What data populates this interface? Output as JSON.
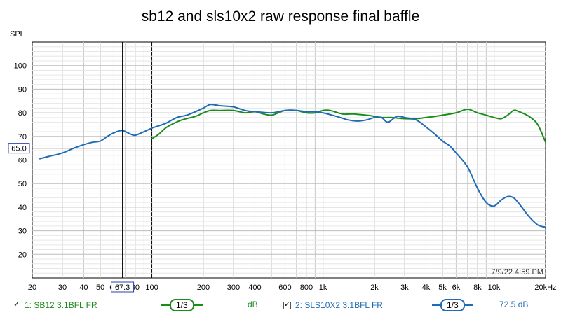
{
  "chart_data": {
    "type": "line",
    "title": "sb12 and sls10x2 raw response final baffle",
    "ylabel": "SPL",
    "xlabel": "",
    "x_scale": "log",
    "xlim": [
      20,
      20000
    ],
    "ylim": [
      10,
      110
    ],
    "x_ticks": [
      {
        "v": 20,
        "label": "20"
      },
      {
        "v": 30,
        "label": "30"
      },
      {
        "v": 40,
        "label": "40"
      },
      {
        "v": 50,
        "label": "50"
      },
      {
        "v": 60,
        "label": "60"
      },
      {
        "v": 80,
        "label": "80"
      },
      {
        "v": 100,
        "label": "100"
      },
      {
        "v": 200,
        "label": "200"
      },
      {
        "v": 300,
        "label": "300"
      },
      {
        "v": 400,
        "label": "400"
      },
      {
        "v": 600,
        "label": "600"
      },
      {
        "v": 800,
        "label": "800"
      },
      {
        "v": 1000,
        "label": "1k"
      },
      {
        "v": 2000,
        "label": "2k"
      },
      {
        "v": 3000,
        "label": "3k"
      },
      {
        "v": 4000,
        "label": "4k"
      },
      {
        "v": 5000,
        "label": "5k"
      },
      {
        "v": 6000,
        "label": "6k"
      },
      {
        "v": 8000,
        "label": "8k"
      },
      {
        "v": 10000,
        "label": "10k"
      },
      {
        "v": 20000,
        "label": "20kHz"
      }
    ],
    "y_ticks": [
      20,
      30,
      40,
      50,
      60,
      70,
      80,
      90,
      100
    ],
    "grid": true,
    "cursor": {
      "x": 67.3,
      "x_label": "67.3",
      "y": 65.0,
      "y_label": "65.0"
    },
    "timestamp": "7/9/22 4:59 PM",
    "series": [
      {
        "name": "1: SB12 3.1BFL FR",
        "color": "#1a8c1a",
        "x": [
          100,
          110,
          120,
          130,
          150,
          180,
          200,
          220,
          250,
          300,
          350,
          400,
          450,
          500,
          550,
          600,
          700,
          800,
          900,
          1000,
          1100,
          1300,
          1500,
          1800,
          2000,
          2200,
          2500,
          3000,
          3500,
          4000,
          4500,
          5000,
          6000,
          7000,
          8000,
          9000,
          10000,
          11000,
          12000,
          13000,
          14000,
          16000,
          18000,
          20000
        ],
        "y": [
          69,
          71,
          73.5,
          75,
          77,
          78.5,
          80,
          81,
          81,
          81,
          80,
          80.5,
          79.5,
          79,
          80,
          81,
          81,
          80,
          80,
          81,
          81,
          79.5,
          79.5,
          79,
          78.5,
          78,
          78,
          77.5,
          77.5,
          78,
          78.5,
          79,
          80,
          81.5,
          80,
          79,
          78,
          77.5,
          79,
          81,
          80.5,
          78.5,
          75,
          67.5
        ]
      },
      {
        "name": "2: SLS10X2 3.1BFL FR",
        "color": "#1f6bb5",
        "x": [
          22,
          25,
          30,
          35,
          40,
          45,
          50,
          55,
          60,
          67,
          75,
          80,
          90,
          100,
          120,
          140,
          160,
          180,
          200,
          220,
          250,
          300,
          350,
          400,
          500,
          600,
          700,
          800,
          900,
          1000,
          1200,
          1400,
          1600,
          1800,
          2000,
          2200,
          2400,
          2700,
          3000,
          3500,
          4000,
          4500,
          5000,
          5500,
          6000,
          7000,
          8000,
          9000,
          10000,
          11000,
          12000,
          13000,
          14000,
          16000,
          18000,
          20000
        ],
        "y": [
          60.5,
          61.5,
          63,
          65,
          66.5,
          67.5,
          68,
          70,
          71.5,
          72.5,
          71,
          70.5,
          72,
          73.5,
          75.5,
          78,
          79,
          80.5,
          82,
          83.5,
          83,
          82.5,
          81,
          80.5,
          80,
          81,
          81,
          80.5,
          80.5,
          80,
          78.5,
          77,
          76.5,
          77,
          78,
          78,
          76,
          78.5,
          78,
          77,
          74,
          71,
          68,
          66,
          63,
          57,
          48,
          42,
          40.5,
          43,
          44.5,
          44,
          41.5,
          36,
          32.5,
          31.5
        ]
      }
    ]
  },
  "legend": {
    "s1": {
      "label": "1: SB12 3.1BFL FR",
      "check": "✓",
      "smoothing": "1/3",
      "value": "dB"
    },
    "s2": {
      "label": "2: SLS10X2 3.1BFL FR",
      "check": "✓",
      "smoothing": "1/3",
      "value": "72.5 dB"
    }
  }
}
